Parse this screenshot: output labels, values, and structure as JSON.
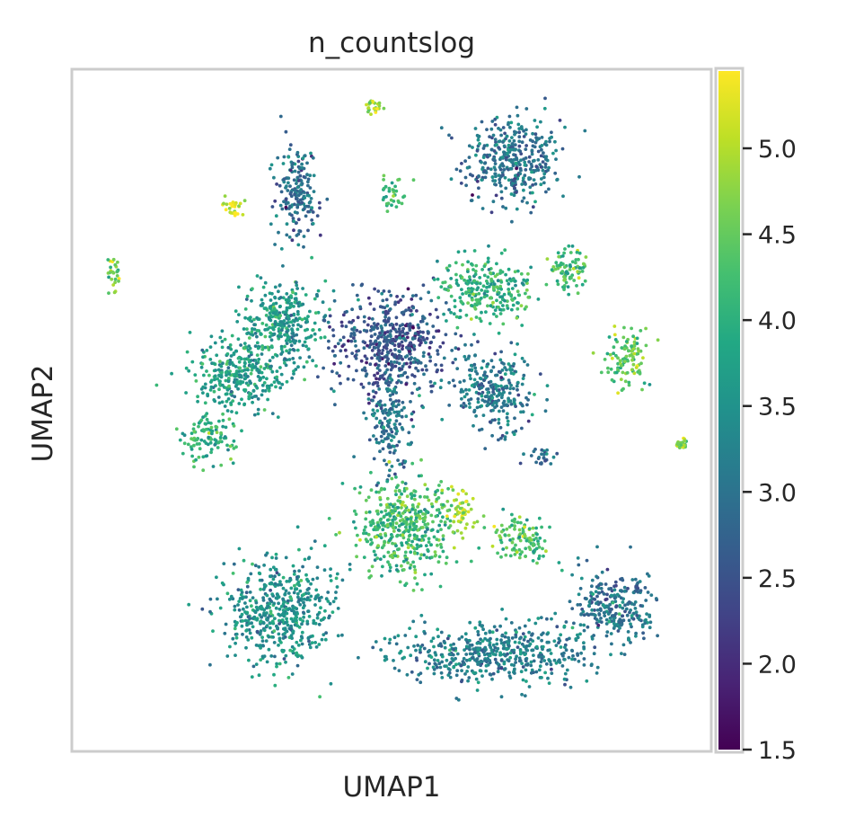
{
  "chart_data": {
    "type": "scatter",
    "title": "n_countslog",
    "xlabel": "UMAP1",
    "ylabel": "UMAP2",
    "grid": false,
    "x_ticks": false,
    "y_ticks": false,
    "colorbar": {
      "colormap": "viridis",
      "min": 1.5,
      "max": 5.45,
      "ticks": [
        1.5,
        2.0,
        2.5,
        3.0,
        3.5,
        4.0,
        4.5,
        5.0
      ],
      "tick_labels": [
        "1.5",
        "2.0",
        "2.5",
        "3.0",
        "3.5",
        "4.0",
        "4.5",
        "5.0"
      ],
      "colors": [
        "#440154",
        "#482475",
        "#414487",
        "#355f8d",
        "#2a788e",
        "#21918c",
        "#22a884",
        "#44bf70",
        "#7ad151",
        "#bddf26",
        "#fde725"
      ]
    },
    "clusters": [
      {
        "name": "top-right-blob",
        "center": [
          0.69,
          0.87
        ],
        "radius": [
          0.07,
          0.06
        ],
        "value": 3.0
      },
      {
        "name": "upper-left-arm",
        "center": [
          0.35,
          0.82
        ],
        "radius": [
          0.03,
          0.07
        ],
        "value": 2.9
      },
      {
        "name": "center-hub",
        "center": [
          0.5,
          0.6
        ],
        "radius": [
          0.08,
          0.07
        ],
        "value": 2.6
      },
      {
        "name": "right-upper-lobe",
        "center": [
          0.65,
          0.68
        ],
        "radius": [
          0.07,
          0.04
        ],
        "value": 4.0
      },
      {
        "name": "left-arm-upper",
        "center": [
          0.33,
          0.63
        ],
        "radius": [
          0.06,
          0.06
        ],
        "value": 3.6
      },
      {
        "name": "left-arm-lower",
        "center": [
          0.26,
          0.55
        ],
        "radius": [
          0.07,
          0.05
        ],
        "value": 3.7
      },
      {
        "name": "far-left-cluster",
        "center": [
          0.21,
          0.46
        ],
        "radius": [
          0.04,
          0.03
        ],
        "value": 4.0
      },
      {
        "name": "right-arm",
        "center": [
          0.66,
          0.53
        ],
        "radius": [
          0.06,
          0.05
        ],
        "value": 3.1
      },
      {
        "name": "center-stem",
        "center": [
          0.5,
          0.48
        ],
        "radius": [
          0.03,
          0.06
        ],
        "value": 3.0
      },
      {
        "name": "center-bottom-wedge",
        "center": [
          0.52,
          0.33
        ],
        "radius": [
          0.07,
          0.07
        ],
        "value": 4.2
      },
      {
        "name": "lower-left-loop",
        "center": [
          0.32,
          0.2
        ],
        "radius": [
          0.08,
          0.07
        ],
        "value": 3.5
      },
      {
        "name": "bottom-band",
        "center": [
          0.66,
          0.14
        ],
        "radius": [
          0.14,
          0.04
        ],
        "value": 3.2
      },
      {
        "name": "right-arc",
        "center": [
          0.85,
          0.21
        ],
        "radius": [
          0.06,
          0.05
        ],
        "value": 3.0
      },
      {
        "name": "lower-right-stripe",
        "center": [
          0.71,
          0.31
        ],
        "radius": [
          0.04,
          0.03
        ],
        "value": 4.3
      },
      {
        "name": "small-left-edge",
        "center": [
          0.06,
          0.7
        ],
        "radius": [
          0.01,
          0.03
        ],
        "value": 4.6
      },
      {
        "name": "small-top-left",
        "center": [
          0.25,
          0.8
        ],
        "radius": [
          0.02,
          0.01
        ],
        "value": 5.1
      },
      {
        "name": "small-top",
        "center": [
          0.47,
          0.95
        ],
        "radius": [
          0.015,
          0.01
        ],
        "value": 4.8
      },
      {
        "name": "small-right-upper",
        "center": [
          0.78,
          0.71
        ],
        "radius": [
          0.03,
          0.03
        ],
        "value": 4.2
      },
      {
        "name": "small-right-mid",
        "center": [
          0.87,
          0.58
        ],
        "radius": [
          0.03,
          0.04
        ],
        "value": 4.4
      },
      {
        "name": "small-right-edge",
        "center": [
          0.96,
          0.45
        ],
        "radius": [
          0.008,
          0.006
        ],
        "value": 4.8
      },
      {
        "name": "small-center-right",
        "center": [
          0.61,
          0.35
        ],
        "radius": [
          0.02,
          0.03
        ],
        "value": 5.0
      },
      {
        "name": "small-right-lower",
        "center": [
          0.74,
          0.43
        ],
        "radius": [
          0.02,
          0.01
        ],
        "value": 3.0
      },
      {
        "name": "small-above-hub",
        "center": [
          0.5,
          0.82
        ],
        "radius": [
          0.02,
          0.02
        ],
        "value": 4.3
      }
    ]
  }
}
